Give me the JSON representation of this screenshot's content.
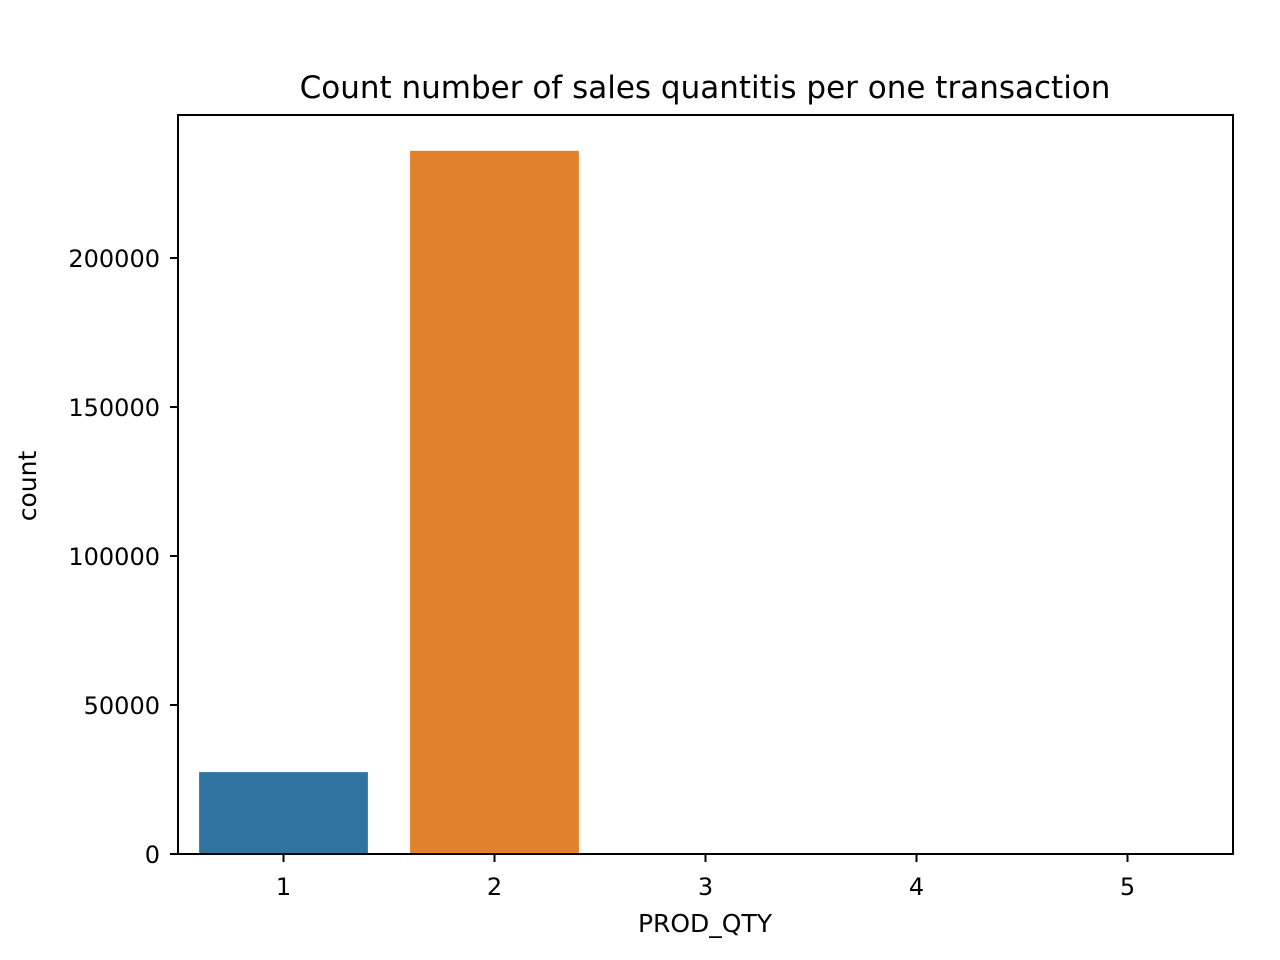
{
  "chart_data": {
    "type": "bar",
    "title": "Count number of sales quantitis per one transaction",
    "xlabel": "PROD_QTY",
    "ylabel": "count",
    "categories": [
      "1",
      "2",
      "3",
      "4",
      "5"
    ],
    "values": [
      27500,
      236000,
      0,
      0,
      0
    ],
    "colors": [
      "#3274a1",
      "#e1812c",
      "#3a923a",
      "#c03d3e",
      "#9372b2"
    ],
    "ylim": [
      0,
      248000
    ],
    "yticks": [
      0,
      50000,
      100000,
      150000,
      200000
    ],
    "ytick_labels": [
      "0",
      "50000",
      "100000",
      "150000",
      "200000"
    ],
    "grid": false,
    "legend": "none"
  }
}
